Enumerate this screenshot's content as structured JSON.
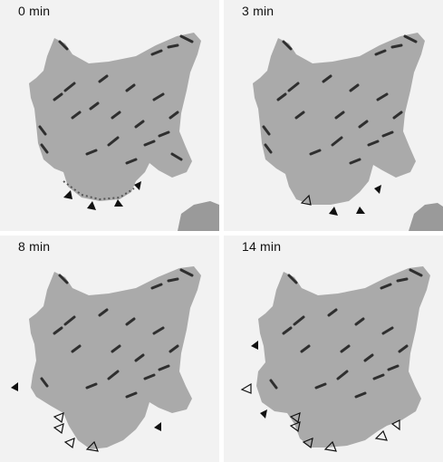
{
  "figure": {
    "panels": [
      {
        "time_label": "0 min"
      },
      {
        "time_label": "3 min"
      },
      {
        "time_label": "8 min"
      },
      {
        "time_label": "14 min"
      }
    ]
  }
}
